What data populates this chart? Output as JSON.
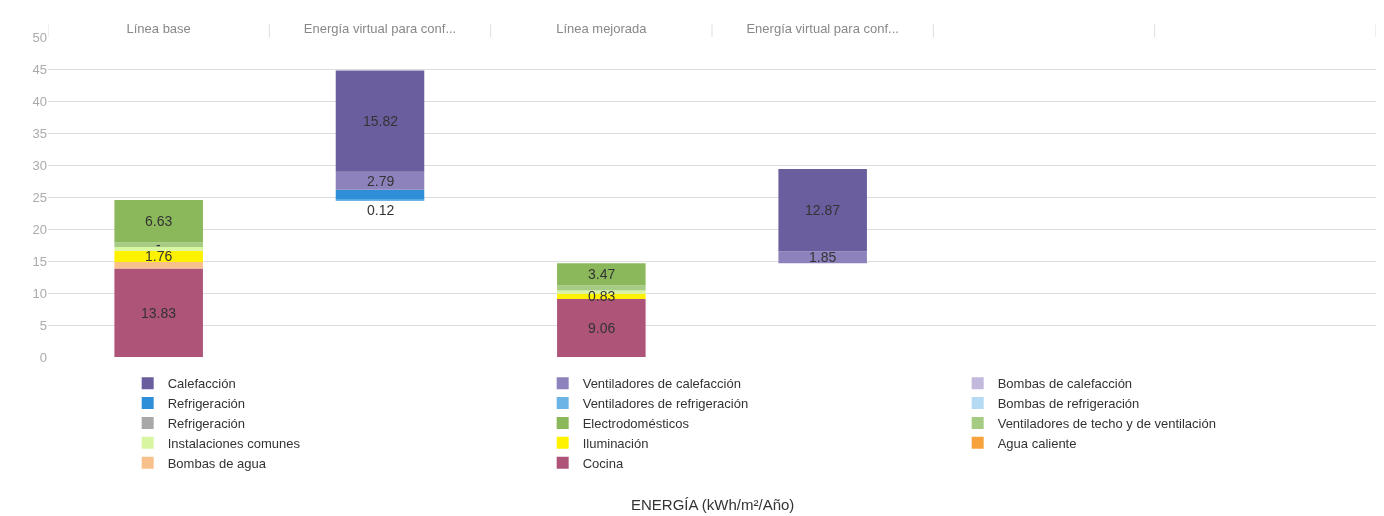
{
  "chart_data": {
    "type": "bar",
    "categories": [
      "Línea base",
      "Energía virtual para conf...",
      "Línea mejorada",
      "Energía virtual para conf...",
      null,
      null
    ],
    "annotations": [
      "ENERGÍA (kWh/m²/Año)"
    ],
    "ylim": [
      0,
      50
    ],
    "yticks": [
      0,
      5,
      10,
      15,
      20,
      25,
      30,
      35,
      40,
      45,
      50
    ],
    "grid": "y",
    "legend": "bottom",
    "series": [
      {
        "name": "Cocina",
        "color": "#ad5478",
        "values": [
          13.83,
          null,
          9.06,
          null,
          null,
          null
        ],
        "base": [
          0,
          null,
          0,
          null,
          null,
          null
        ],
        "value_labels": [
          "13.83",
          null,
          "9.06",
          null,
          null,
          null
        ]
      },
      {
        "name": "Bombas de agua",
        "color": "#f8c08a",
        "values": [
          1.0,
          null,
          null,
          null,
          null,
          null
        ],
        "base": [
          13.83,
          null,
          null,
          null,
          null,
          null
        ]
      },
      {
        "name": "Agua caliente",
        "color": "#f7a23c",
        "values": [
          null,
          null,
          null,
          null,
          null,
          null
        ]
      },
      {
        "name": "Iluminación",
        "color": "#fff200",
        "values": [
          1.76,
          null,
          0.83,
          null,
          null,
          null
        ],
        "base": [
          14.83,
          null,
          9.06,
          null,
          null,
          null
        ],
        "value_labels": [
          "1.76",
          null,
          "0.83",
          null,
          null,
          null
        ]
      },
      {
        "name": "Instalaciones comunes",
        "color": "#d8f5a2",
        "values": [
          0.6,
          null,
          0.5,
          null,
          null,
          null
        ],
        "base": [
          16.59,
          null,
          9.89,
          null,
          null,
          null
        ]
      },
      {
        "name": "Ventiladores de techo y de ventilación",
        "color": "#a6cc84",
        "values": [
          0.7,
          null,
          0.8,
          null,
          null,
          null
        ],
        "base": [
          17.19,
          null,
          10.39,
          null,
          null,
          null
        ],
        "value_labels": [
          "-",
          null,
          null,
          null,
          null,
          null
        ]
      },
      {
        "name": "Electrodomésticos",
        "color": "#8bb85a",
        "values": [
          6.63,
          null,
          3.47,
          null,
          null,
          null
        ],
        "base": [
          17.89,
          null,
          11.19,
          null,
          null,
          null
        ],
        "value_labels": [
          "6.63",
          null,
          "3.47",
          null,
          null,
          null
        ]
      },
      {
        "name": "Refrigeración",
        "color": "#a8a8a8",
        "values": [
          null,
          null,
          null,
          null,
          null,
          null
        ]
      },
      {
        "name": "Bombas de refrigeración",
        "color": "#b5daf3",
        "values": [
          null,
          null,
          null,
          null,
          null,
          null
        ]
      },
      {
        "name": "Ventiladores de refrigeración",
        "color": "#6ab4e6",
        "values": [
          null,
          0.12,
          null,
          null,
          null,
          null
        ],
        "base": [
          null,
          24.52,
          null,
          null,
          null,
          null
        ],
        "value_labels": [
          null,
          "0.12",
          null,
          null,
          null,
          null
        ]
      },
      {
        "name": "Refrigeración",
        "color": "#2e8fd8",
        "values": [
          null,
          1.5,
          null,
          null,
          null,
          null
        ],
        "base": [
          null,
          24.64,
          null,
          null,
          null,
          null
        ]
      },
      {
        "name": "Bombas de calefacción",
        "color": "#c2b9dd",
        "values": [
          null,
          null,
          null,
          null,
          null,
          null
        ]
      },
      {
        "name": "Ventiladores de calefacción",
        "color": "#8e82bd",
        "values": [
          null,
          2.79,
          null,
          1.85,
          null,
          null
        ],
        "base": [
          null,
          26.14,
          null,
          14.66,
          null,
          null
        ],
        "value_labels": [
          null,
          "2.79",
          null,
          "1.85",
          null,
          null
        ]
      },
      {
        "name": "Calefacción",
        "color": "#6b5e9e",
        "values": [
          null,
          15.82,
          null,
          12.87,
          null,
          null
        ],
        "base": [
          null,
          28.93,
          null,
          16.51,
          null,
          null
        ],
        "value_labels": [
          null,
          "15.82",
          null,
          "12.87",
          null,
          null
        ]
      }
    ]
  }
}
